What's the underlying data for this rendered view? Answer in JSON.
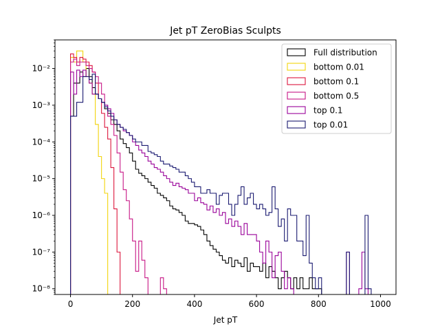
{
  "chart_data": {
    "type": "histogram-step",
    "title": "Jet pT ZeroBias Sculpts",
    "xlabel": "Jet pT",
    "ylabel": "",
    "xlim": [
      -50,
      1050
    ],
    "ylim": [
      7e-09,
      0.06
    ],
    "yscale": "log",
    "grid": false,
    "legend_placement": "top-right",
    "bin_width": 10,
    "x_ticks": [
      0,
      200,
      400,
      600,
      800,
      1000
    ],
    "x_tick_labels": [
      "0",
      "200",
      "400",
      "600",
      "800",
      "1000"
    ],
    "y_ticks": [
      1e-08,
      1e-07,
      1e-06,
      1e-05,
      0.0001,
      0.001,
      0.01
    ],
    "y_tick_labels": [
      "10⁻⁸",
      "10⁻⁷",
      "10⁻⁶",
      "10⁻⁵",
      "10⁻⁴",
      "10⁻³",
      "10⁻²"
    ],
    "series": [
      {
        "name": "Full distribution",
        "color": "#000000",
        "start": 0,
        "values": [
          0.0005,
          0.004,
          0.004,
          0.008,
          0.006,
          0.01,
          0.006,
          0.003,
          0.002,
          0.0015,
          0.0012,
          0.0008,
          0.0006,
          0.0004,
          0.0003,
          0.0002,
          0.00012,
          9e-05,
          7e-05,
          5e-05,
          3e-05,
          1.8e-05,
          1.4e-05,
          1.2e-05,
          1e-05,
          8e-06,
          6.5e-06,
          5.5e-06,
          4e-06,
          3.5e-06,
          3e-06,
          2.5e-06,
          1.8e-06,
          1.5e-06,
          1.4e-06,
          1.2e-06,
          1e-06,
          7e-07,
          6e-07,
          6e-07,
          5.5e-07,
          5e-07,
          4e-07,
          3e-07,
          2e-07,
          1.5e-07,
          1.2e-07,
          1e-07,
          8e-08,
          6e-08,
          5e-08,
          7e-08,
          4e-08,
          6e-08,
          5e-08,
          4e-08,
          7e-08,
          3e-08,
          5e-08,
          4e-08,
          4e-08,
          3e-08,
          5e-08,
          2e-08,
          4e-08,
          3e-08,
          2e-08,
          1e-08,
          2e-08,
          3e-08,
          2e-08,
          1e-08,
          2e-08,
          1e-08,
          2e-08,
          1e-08,
          1e-08,
          2e-08,
          1e-08,
          1e-08,
          1e-08
        ]
      },
      {
        "name": "bottom 0.01",
        "color": "#f2d40b",
        "start": 0,
        "values": [
          0.02,
          0.015,
          0.03,
          0.03,
          0.015,
          0.006,
          0.004,
          0.002,
          0.0003,
          4e-05,
          1e-05,
          4e-06
        ]
      },
      {
        "name": "bottom 0.1",
        "color": "#dc143c",
        "start": 0,
        "values": [
          0.025,
          0.02,
          0.015,
          0.02,
          0.018,
          0.015,
          0.012,
          0.008,
          0.004,
          0.0015,
          0.0006,
          0.00025,
          0.00012,
          2e-05,
          1.5e-06,
          1e-07
        ]
      },
      {
        "name": "bottom 0.5",
        "color": "#c71585",
        "start": 0,
        "values": [
          0.015,
          0.018,
          0.012,
          0.015,
          0.015,
          0.012,
          0.01,
          0.008,
          0.006,
          0.004,
          0.002,
          0.001,
          0.0005,
          0.0003,
          0.00015,
          5e-05,
          1.5e-05,
          5e-06,
          2.5e-06,
          8e-07,
          2e-07,
          3e-08,
          2e-07,
          6e-08,
          2e-08,
          0,
          0,
          0,
          0,
          2e-08,
          1e-08
        ]
      },
      {
        "name": "top 0.1",
        "color": "#990099",
        "start": 0,
        "values": [
          0.008,
          0.002,
          0.009,
          0.006,
          0.009,
          0.006,
          0.004,
          0.002,
          0.002,
          0.0015,
          0.0012,
          0.001,
          0.0008,
          0.0006,
          0.0004,
          0.0003,
          0.00025,
          0.0002,
          0.00018,
          0.00015,
          0.0001,
          8e-05,
          6e-05,
          5e-05,
          4e-05,
          3e-05,
          2.5e-05,
          2e-05,
          1.8e-05,
          1.5e-05,
          1.2e-05,
          1e-05,
          8e-06,
          6.5e-06,
          7.5e-06,
          6e-06,
          5.5e-06,
          5e-06,
          4e-06,
          4e-06,
          2.5e-06,
          3e-06,
          2.2e-06,
          2e-06,
          1.4e-06,
          1.8e-06,
          1.2e-06,
          1.5e-06,
          1e-06,
          1.2e-06,
          6e-07,
          8e-07,
          5e-07,
          7e-07,
          5e-07,
          3e-07,
          6e-07,
          3e-07,
          3e-07,
          3e-07,
          2e-07,
          1e-07,
          5e-08,
          2e-07,
          1e-07,
          2e-08,
          8e-08,
          1e-07,
          3e-08,
          1e-08,
          2e-08,
          1e-08,
          0,
          0,
          0,
          0,
          0,
          0,
          0,
          0,
          0,
          0,
          0,
          0,
          0,
          0,
          0,
          0,
          0,
          1e-07,
          0,
          0,
          0,
          1e-08,
          1e-07,
          1e-08
        ]
      },
      {
        "name": "top 0.01",
        "color": "#191970",
        "start": 0,
        "values": [
          0.0005,
          0.0005,
          0.0012,
          0.0012,
          0.006,
          0.006,
          0.005,
          0.007,
          0.002,
          0.0015,
          0.0012,
          0.0009,
          0.0007,
          0.0005,
          0.0004,
          0.0003,
          0.00025,
          0.00022,
          0.00018,
          0.00015,
          0.00012,
          0.0001,
          0.0001,
          8e-05,
          8e-05,
          5.5e-05,
          5e-05,
          4.5e-05,
          4e-05,
          3e-05,
          2.5e-05,
          2.5e-05,
          2.2e-05,
          2e-05,
          1.8e-05,
          1.5e-05,
          1.5e-05,
          1.2e-05,
          1e-05,
          8e-06,
          6e-06,
          6e-06,
          4e-06,
          4e-06,
          5e-06,
          4e-06,
          4e-06,
          2e-06,
          3.5e-06,
          4e-06,
          4e-06,
          2e-06,
          1e-06,
          2e-06,
          3.5e-06,
          6e-06,
          2e-06,
          3e-06,
          4e-06,
          2e-06,
          1.5e-06,
          2e-06,
          1.5e-06,
          1e-06,
          1.2e-06,
          6e-06,
          1.5e-06,
          5e-07,
          8e-07,
          2e-07,
          1.5e-06,
          1e-06,
          1e-06,
          2e-07,
          2e-07,
          8e-08,
          1e-06,
          5e-08,
          2e-08,
          1e-08,
          2e-08,
          0,
          0,
          0,
          0,
          0,
          0,
          0,
          0,
          1e-07,
          0,
          0,
          0,
          0,
          0,
          1e-06,
          1e-08
        ]
      }
    ]
  }
}
